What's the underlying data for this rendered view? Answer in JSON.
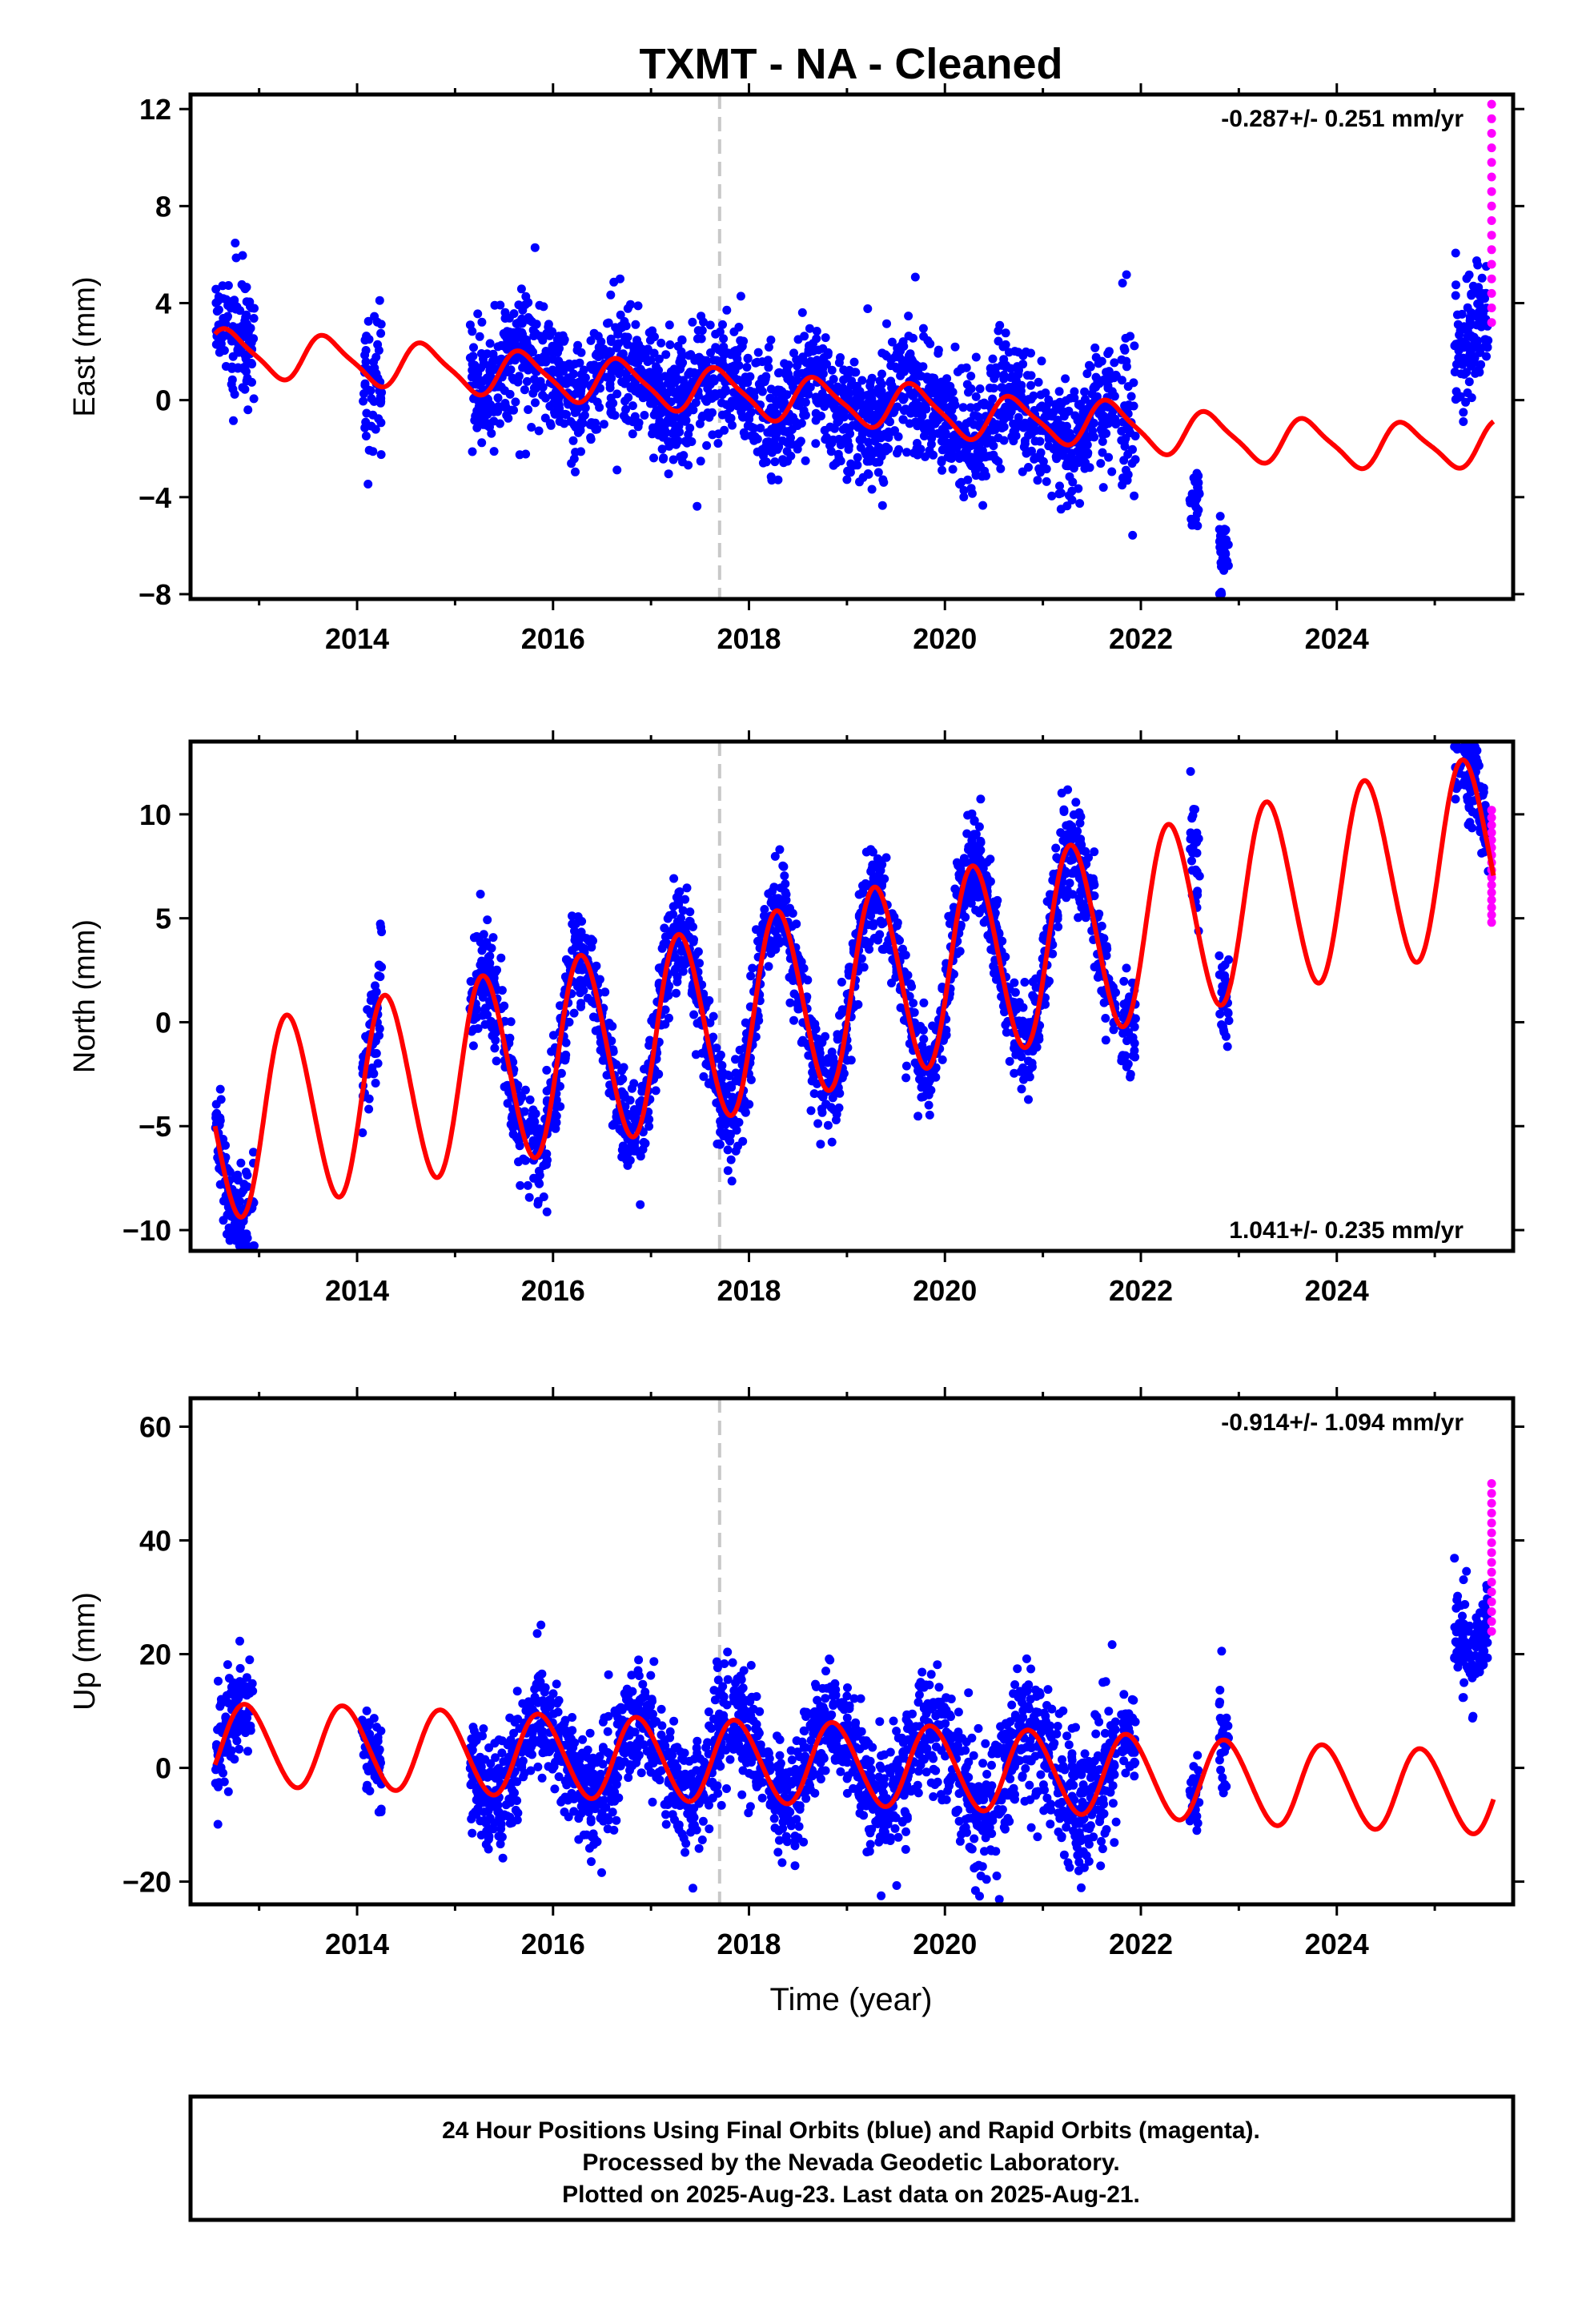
{
  "title": "TXMT  - NA - Cleaned",
  "colors": {
    "final": "#0000ff",
    "rapid": "#ff00ff",
    "model": "#ff0000",
    "event": "#c8c8c8",
    "axis": "#000000"
  },
  "chart_data": [
    {
      "type": "scatter",
      "ylabel": "East (mm)",
      "rate": "-0.287+/- 0.251 mm/yr",
      "rate_position": "top-right",
      "xlim": [
        2012.3,
        2025.8
      ],
      "ylim": [
        -8.2,
        12.6
      ],
      "yticks": [
        12,
        8,
        4,
        0,
        -4,
        -8
      ],
      "xticks": [
        2014,
        2016,
        2018,
        2020,
        2022,
        2024
      ],
      "event_line_x": 2017.7,
      "model": {
        "trend": [
          [
            2012.55,
            2.0
          ],
          [
            2014.0,
            1.6
          ],
          [
            2015.5,
            1.1
          ],
          [
            2016.5,
            0.8
          ],
          [
            2017.7,
            0.35
          ],
          [
            2018.5,
            0.0
          ],
          [
            2019.5,
            -0.2
          ],
          [
            2020.5,
            -0.8
          ],
          [
            2021.5,
            -0.9
          ],
          [
            2022.5,
            -1.4
          ],
          [
            2023.5,
            -1.7
          ],
          [
            2024.5,
            -1.9
          ],
          [
            2025.6,
            -1.8
          ]
        ],
        "amp": 0.9,
        "phase": 0.45,
        "amp2": 0.2
      },
      "final_segments": [
        {
          "t": [
            2012.55,
            2012.95
          ],
          "spread": 1.3
        },
        {
          "t": [
            2014.05,
            2014.25
          ],
          "spread": 1.6
        },
        {
          "t": [
            2015.15,
            2015.85
          ],
          "spread": 1.4
        },
        {
          "t": [
            2015.85,
            2017.7
          ],
          "spread": 1.3
        },
        {
          "t": [
            2017.7,
            2019.5
          ],
          "spread": 1.3
        },
        {
          "t": [
            2019.5,
            2021.75
          ],
          "spread": 1.2
        },
        {
          "t": [
            2021.8,
            2021.95
          ],
          "spread": 2.0
        },
        {
          "t": [
            2022.5,
            2022.6
          ],
          "spread": 0.5,
          "offset": -3.5
        },
        {
          "t": [
            2022.8,
            2022.9
          ],
          "spread": 1.2,
          "offset": -5.0
        },
        {
          "t": [
            2025.2,
            2025.55
          ],
          "spread": 1.4,
          "offset": 4.6
        }
      ],
      "rapid": {
        "t": 2025.58,
        "range": [
          3.2,
          12.2
        ]
      }
    },
    {
      "type": "scatter",
      "ylabel": "North (mm)",
      "rate": "1.041+/- 0.235 mm/yr",
      "rate_position": "bottom-right",
      "xlim": [
        2012.3,
        2025.8
      ],
      "ylim": [
        -11.0,
        13.5
      ],
      "yticks": [
        10,
        5,
        0,
        -5,
        -10
      ],
      "xticks": [
        2014,
        2016,
        2018,
        2020,
        2022,
        2024
      ],
      "event_line_x": 2017.7,
      "model": {
        "trend": [
          [
            2012.55,
            -5.0
          ],
          [
            2014.0,
            -3.6
          ],
          [
            2015.5,
            -2.2
          ],
          [
            2016.5,
            -1.2
          ],
          [
            2017.7,
            0.0
          ],
          [
            2018.5,
            1.0
          ],
          [
            2019.5,
            2.1
          ],
          [
            2020.5,
            3.1
          ],
          [
            2021.5,
            4.1
          ],
          [
            2022.5,
            5.1
          ],
          [
            2023.5,
            6.2
          ],
          [
            2024.5,
            7.2
          ],
          [
            2025.6,
            8.3
          ]
        ],
        "amp": 4.6,
        "phase": 0.05,
        "amp2": 0.3
      },
      "final_segments": [
        {
          "t": [
            2012.55,
            2012.95
          ],
          "spread": 1.3
        },
        {
          "t": [
            2014.05,
            2014.25
          ],
          "spread": 1.5
        },
        {
          "t": [
            2015.15,
            2015.85
          ],
          "spread": 1.2
        },
        {
          "t": [
            2015.85,
            2017.7
          ],
          "spread": 1.2
        },
        {
          "t": [
            2017.7,
            2019.5
          ],
          "spread": 1.2
        },
        {
          "t": [
            2019.5,
            2021.75
          ],
          "spread": 1.2
        },
        {
          "t": [
            2021.8,
            2021.95
          ],
          "spread": 1.5
        },
        {
          "t": [
            2022.5,
            2022.6
          ],
          "spread": 1.5,
          "offset": 3.5
        },
        {
          "t": [
            2022.8,
            2022.9
          ],
          "spread": 1.2
        },
        {
          "t": [
            2025.2,
            2025.55
          ],
          "spread": 1.2
        }
      ],
      "rapid": {
        "t": 2025.58,
        "range": [
          4.8,
          10.2
        ]
      }
    },
    {
      "type": "scatter",
      "ylabel": "Up (mm)",
      "xlabel": "Time (year)",
      "rate": "-0.914+/- 1.094 mm/yr",
      "rate_position": "top-right",
      "xlim": [
        2012.3,
        2025.8
      ],
      "ylim": [
        -24,
        65
      ],
      "yticks": [
        60,
        40,
        20,
        0,
        -20
      ],
      "xticks": [
        2014,
        2016,
        2018,
        2020,
        2022,
        2024
      ],
      "event_line_x": 2017.7,
      "model": {
        "trend": [
          [
            2012.55,
            4.0
          ],
          [
            2014.0,
            3.6
          ],
          [
            2015.5,
            2.4
          ],
          [
            2016.5,
            1.8
          ],
          [
            2017.7,
            1.2
          ],
          [
            2018.5,
            0.9
          ],
          [
            2019.5,
            0.4
          ],
          [
            2020.5,
            -0.4
          ],
          [
            2021.5,
            -1.0
          ],
          [
            2022.5,
            -2.0
          ],
          [
            2023.5,
            -3.0
          ],
          [
            2024.5,
            -3.6
          ],
          [
            2025.6,
            -4.5
          ]
        ],
        "amp": 7.2,
        "phase": 0.62,
        "amp2": 0.5
      },
      "final_segments": [
        {
          "t": [
            2012.55,
            2012.95
          ],
          "spread": 4.5
        },
        {
          "t": [
            2014.05,
            2014.25
          ],
          "spread": 3.5
        },
        {
          "t": [
            2015.15,
            2015.85
          ],
          "spread": 5.0
        },
        {
          "t": [
            2015.85,
            2017.7
          ],
          "spread": 5.0
        },
        {
          "t": [
            2017.7,
            2019.5
          ],
          "spread": 5.0
        },
        {
          "t": [
            2019.5,
            2021.75
          ],
          "spread": 6.0
        },
        {
          "t": [
            2021.8,
            2021.95
          ],
          "spread": 4.0
        },
        {
          "t": [
            2022.5,
            2022.6
          ],
          "spread": 4.0
        },
        {
          "t": [
            2022.8,
            2022.9
          ],
          "spread": 5.0
        },
        {
          "t": [
            2025.2,
            2025.55
          ],
          "spread": 5.0,
          "offset": 33.0
        }
      ],
      "rapid": {
        "t": 2025.58,
        "range": [
          24.0,
          50.0
        ]
      }
    }
  ],
  "footer": {
    "line1": "24 Hour Positions Using Final Orbits (blue) and Rapid Orbits (magenta).",
    "line2": "Processed by the Nevada Geodetic Laboratory.",
    "line3": "Plotted on 2025-Aug-23. Last data on 2025-Aug-21."
  }
}
